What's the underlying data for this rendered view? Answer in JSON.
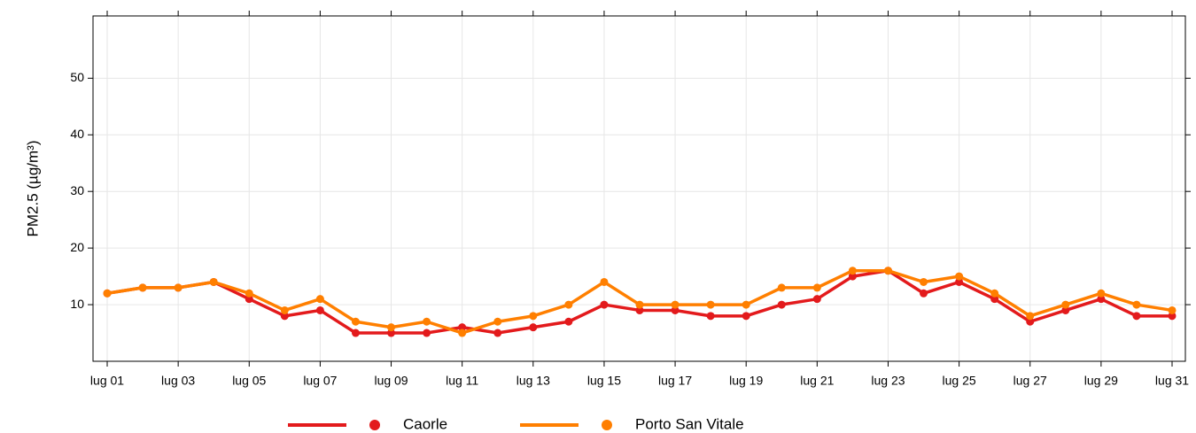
{
  "chart_data": {
    "type": "line",
    "y_label": "PM2.5 (µg/m³)",
    "categories": [
      "lug 01",
      null,
      "lug 03",
      null,
      "lug 05",
      null,
      "lug 07",
      null,
      "lug 09",
      null,
      "lug 11",
      null,
      "lug 13",
      null,
      "lug 15",
      null,
      "lug 17",
      null,
      "lug 19",
      null,
      "lug 21",
      null,
      "lug 23",
      null,
      "lug 25",
      null,
      "lug 27",
      null,
      "lug 29",
      null,
      "lug 31"
    ],
    "series": [
      {
        "name": "Caorle",
        "color": "#e31a1c",
        "values": [
          12,
          13,
          13,
          14,
          11,
          8,
          9,
          5,
          5,
          5,
          6,
          5,
          6,
          7,
          10,
          9,
          9,
          8,
          8,
          10,
          11,
          15,
          16,
          12,
          14,
          11,
          7,
          9,
          11,
          8,
          8
        ]
      },
      {
        "name": "Porto San Vitale",
        "color": "#ff7f00",
        "values": [
          12,
          13,
          13,
          14,
          12,
          9,
          11,
          7,
          6,
          7,
          5,
          7,
          8,
          10,
          14,
          10,
          10,
          10,
          10,
          13,
          13,
          16,
          16,
          14,
          15,
          12,
          8,
          10,
          12,
          10,
          9
        ]
      }
    ],
    "ylim": [
      0,
      61
    ],
    "yticks": [
      10,
      20,
      30,
      40,
      50
    ],
    "grid": true,
    "legend": "bottom"
  }
}
